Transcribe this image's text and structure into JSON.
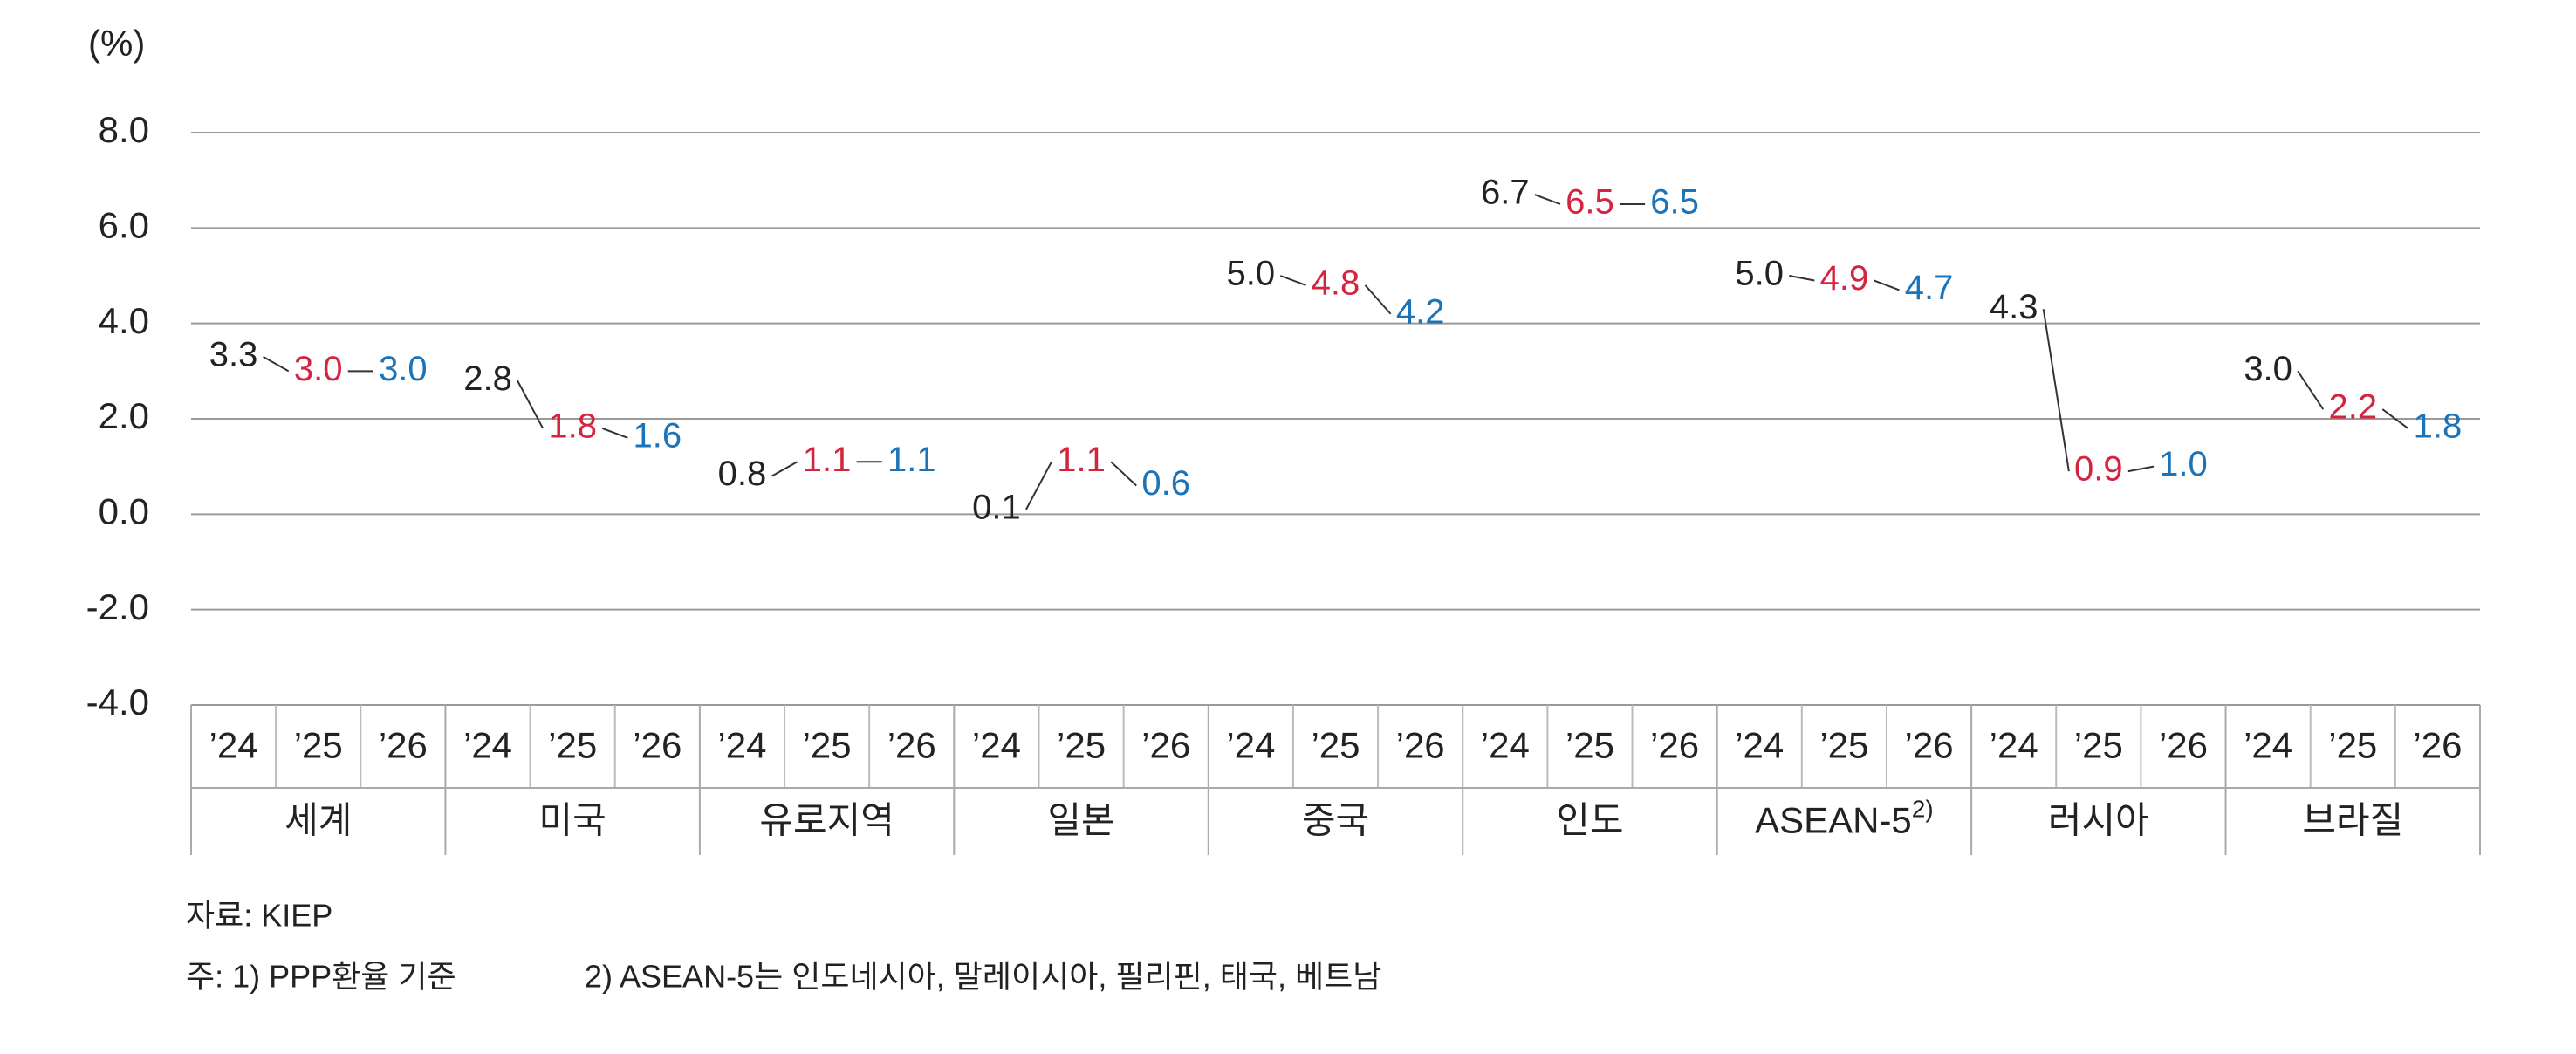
{
  "chart_data": {
    "type": "dot-line",
    "unit": "(%)",
    "categories": [
      "세계",
      "미국",
      "유로지역",
      "일본",
      "중국",
      "인도",
      "ASEAN-5",
      "러시아",
      "브라질"
    ],
    "category_superscripts": {
      "6": "2)"
    },
    "series": [
      {
        "name": "’24",
        "color": "#222222",
        "values": [
          3.3,
          2.8,
          0.8,
          0.1,
          5.0,
          6.7,
          5.0,
          4.3,
          3.0
        ],
        "value_labels": [
          "3.3",
          "2.8",
          "0.8",
          "0.1",
          "5.0",
          "6.7",
          "5.0",
          "4.3",
          "3.0"
        ]
      },
      {
        "name": "’25",
        "color": "#d42440",
        "values": [
          3.0,
          1.8,
          1.1,
          1.1,
          4.8,
          6.5,
          4.9,
          0.9,
          2.2
        ],
        "value_labels": [
          "3.0",
          "1.8",
          "1.1",
          "1.1",
          "4.8",
          "6.5",
          "4.9",
          "0.9",
          "2.2"
        ]
      },
      {
        "name": "’26",
        "color": "#1b73b8",
        "values": [
          3.0,
          1.6,
          1.1,
          0.6,
          4.2,
          6.5,
          4.7,
          1.0,
          1.8
        ],
        "value_labels": [
          "3.0",
          "1.6",
          "1.1",
          "0.6",
          "4.2",
          "6.5",
          "4.7",
          "1.0",
          "1.8"
        ]
      }
    ],
    "ylim": [
      -4,
      8
    ],
    "yticks": [
      {
        "value": -4,
        "label": "-4.0"
      },
      {
        "value": -2,
        "label": "-2.0"
      },
      {
        "value": 0,
        "label": "0.0"
      },
      {
        "value": 2,
        "label": "2.0"
      },
      {
        "value": 4,
        "label": "4.0"
      },
      {
        "value": 6,
        "label": "6.0"
      },
      {
        "value": 8,
        "label": "8.0"
      }
    ],
    "grid": true,
    "source": "자료: KIEP",
    "notes": [
      "주: 1) PPP환율 기준",
      "2) ASEAN-5는 인도네시아, 말레이시아, 필리핀, 태국, 베트남"
    ]
  }
}
